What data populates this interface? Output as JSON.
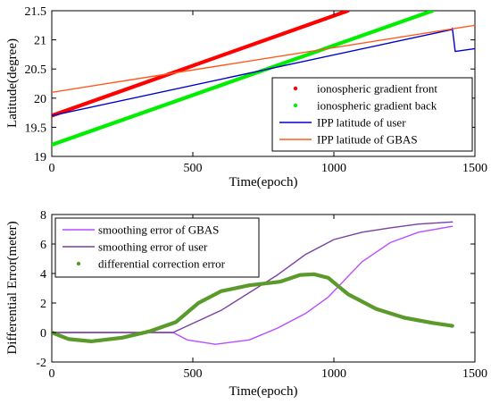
{
  "chart_data": [
    {
      "type": "line",
      "xlabel": "Time(epoch)",
      "ylabel": "Latitude(degree)",
      "xlim": [
        0,
        1500
      ],
      "ylim": [
        19,
        21.5
      ],
      "xticks": [
        "0",
        "500",
        "1000",
        "1500"
      ],
      "yticks": [
        "19",
        "19.5",
        "20",
        "20.5",
        "21",
        "21.5"
      ],
      "grid": false,
      "legend_position": "bottom-right",
      "series": [
        {
          "name": "ionospheric gradient front",
          "color": "#ff0000",
          "style": "thick-dotted",
          "x": [
            0,
            1050
          ],
          "y": [
            19.7,
            21.5
          ]
        },
        {
          "name": "ionospheric gradient back",
          "color": "#00ee00",
          "style": "thick-dotted",
          "x": [
            0,
            1350
          ],
          "y": [
            19.2,
            21.5
          ]
        },
        {
          "name": "IPP latitude of user",
          "color": "#0000cc",
          "style": "line",
          "x": [
            0,
            1420,
            1420,
            1430,
            1500
          ],
          "y": [
            19.7,
            21.18,
            21.2,
            20.8,
            20.85
          ]
        },
        {
          "name": "IPP latitude of GBAS",
          "color": "#ff5a1e",
          "style": "line",
          "x": [
            0,
            1500
          ],
          "y": [
            20.1,
            21.25
          ]
        }
      ]
    },
    {
      "type": "line",
      "xlabel": "Time(epoch)",
      "ylabel": "Differential Error(meter)",
      "xlim": [
        0,
        1500
      ],
      "ylim": [
        -2,
        8
      ],
      "xticks": [
        "0",
        "500",
        "1000",
        "1500"
      ],
      "yticks": [
        "-2",
        "0",
        "2",
        "4",
        "6",
        "8"
      ],
      "grid": false,
      "legend_position": "top-left",
      "series": [
        {
          "name": "smoothing error of GBAS",
          "color": "#b84dff",
          "style": "line",
          "x": [
            0,
            430,
            480,
            580,
            700,
            800,
            900,
            980,
            1100,
            1200,
            1300,
            1420
          ],
          "y": [
            0,
            0,
            -0.5,
            -0.8,
            -0.5,
            0.3,
            1.3,
            2.4,
            4.8,
            6.1,
            6.8,
            7.2
          ]
        },
        {
          "name": "smoothing error of user",
          "color": "#7b3f9e",
          "style": "line",
          "x": [
            0,
            430,
            600,
            800,
            900,
            1000,
            1100,
            1200,
            1300,
            1420
          ],
          "y": [
            0,
            0,
            1.5,
            3.9,
            5.3,
            6.3,
            6.8,
            7.1,
            7.35,
            7.5
          ]
        },
        {
          "name": "differential correction error",
          "color": "#5a9a2a",
          "style": "thick-dotted",
          "x": [
            0,
            60,
            140,
            250,
            350,
            440,
            520,
            600,
            700,
            790,
            810,
            880,
            930,
            980,
            1050,
            1150,
            1250,
            1350,
            1420
          ],
          "y": [
            0,
            -0.45,
            -0.6,
            -0.35,
            0.1,
            0.7,
            2.0,
            2.8,
            3.2,
            3.4,
            3.45,
            3.9,
            3.95,
            3.7,
            2.6,
            1.6,
            1.0,
            0.65,
            0.45
          ]
        }
      ]
    }
  ]
}
